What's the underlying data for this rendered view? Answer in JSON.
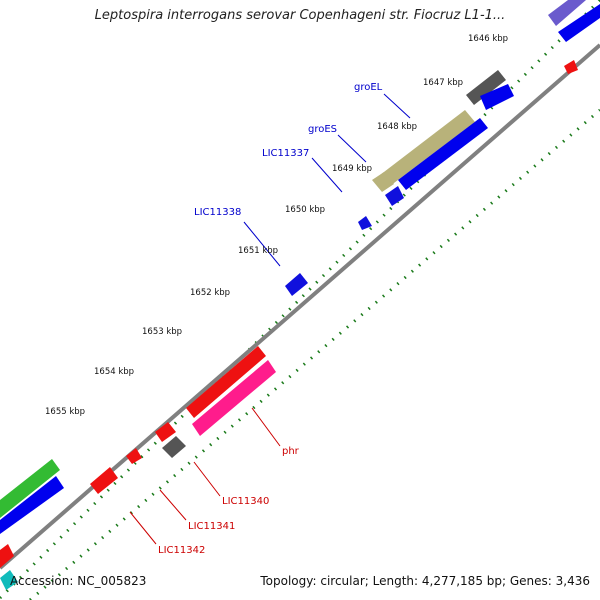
{
  "title": "Leptospira interrogans serovar Copenhageni str. Fiocruz L1-1...",
  "accession_label": "Accession: NC_005823",
  "topology_label": "Topology: circular; Length: 4,277,185 bp; Genes: 3,436",
  "ticks": [
    "1646 kbp",
    "1647 kbp",
    "1648 kbp",
    "1649 kbp",
    "1650 kbp",
    "1651 kbp",
    "1652 kbp",
    "1653 kbp",
    "1654 kbp",
    "1655 kbp"
  ],
  "genes": {
    "groEL": "groEL",
    "groES": "groES",
    "LIC11337": "LIC11337",
    "LIC11338": "LIC11338",
    "phr": "phr",
    "LIC11340": "LIC11340",
    "LIC11341": "LIC11341",
    "LIC11342": "LIC11342"
  },
  "colors": {
    "backbone": "#808080",
    "cds_forward": "#0000ee",
    "cds_reverse": "#ee0000",
    "groEL_feature": "#b8b27a",
    "phr_feature": "#ff1c8c",
    "gray_feature": "#555555",
    "green_feature": "#33bb33",
    "lavender_feature": "#6a5acd",
    "tick_dots": "#1a7a1a",
    "label_forward": "#0000cc",
    "label_reverse": "#cc0000"
  }
}
